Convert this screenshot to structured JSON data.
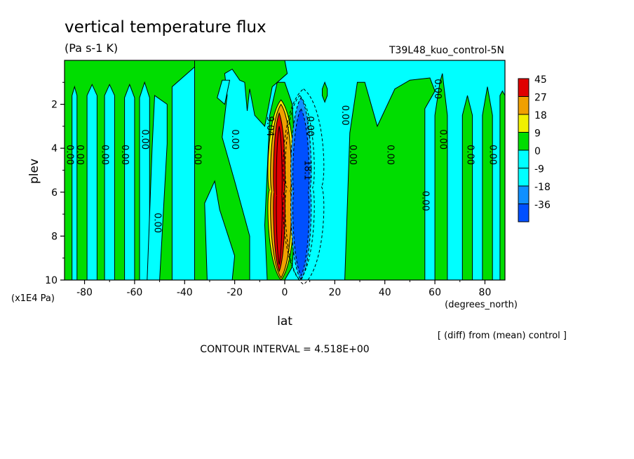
{
  "chart_data": {
    "type": "heatmap",
    "title": "vertical temperature flux",
    "subtitle": "(Pa s-1 K)",
    "run_label": "T39L48_kuo_control-5N",
    "xlabel": "lat",
    "x_units": "(degrees_north)",
    "ylabel": "plev",
    "y_units": "(x1E4 Pa)",
    "xlim": [
      -88,
      88
    ],
    "ylim": [
      0,
      10
    ],
    "y_axis_inverted": true,
    "x_ticks": [
      -80,
      -60,
      -40,
      -20,
      0,
      20,
      40,
      60,
      80
    ],
    "y_ticks": [
      2,
      4,
      6,
      8,
      10
    ],
    "footnote": "[ (diff) from (mean) control ]",
    "contour_interval_label": "CONTOUR INTERVAL = 4.518E+00",
    "colorbar": {
      "levels": [
        "45",
        "27",
        "18",
        "9",
        "0",
        "-9",
        "-18",
        "-36"
      ],
      "colors": [
        "#e00000",
        "#f0a000",
        "#f0f000",
        "#00dd00",
        "#00ffff",
        "#00ffff",
        "#1090ff",
        "#0050ff"
      ]
    },
    "palette": {
      "cyan": "#00ffff",
      "green": "#00dd00",
      "orange": "#f0a000",
      "yellow": "#f0f000",
      "red": "#e00000",
      "blue": "#1090ff",
      "deepblue": "#0050ff"
    },
    "contour_labels": [
      {
        "text": "0.00",
        "lat": -86,
        "plev": 4.3
      },
      {
        "text": "0.00",
        "lat": -82,
        "plev": 4.3
      },
      {
        "text": "0.00",
        "lat": -72,
        "plev": 4.3
      },
      {
        "text": "0.00",
        "lat": -64,
        "plev": 4.3
      },
      {
        "text": "0.00",
        "lat": -56,
        "plev": 3.6
      },
      {
        "text": "0.00",
        "lat": -51,
        "plev": 7.4
      },
      {
        "text": "0.00",
        "lat": -35,
        "plev": 4.3
      },
      {
        "text": "0.00",
        "lat": -20,
        "plev": 3.6
      },
      {
        "text": "9.04",
        "lat": -6,
        "plev": 3.0
      },
      {
        "text": "0.00",
        "lat": 10,
        "plev": 3.0
      },
      {
        "text": "18.1",
        "lat": 9,
        "plev": 5.0
      },
      {
        "text": "0.00",
        "lat": 24,
        "plev": 2.5
      },
      {
        "text": "0.00",
        "lat": 27,
        "plev": 4.3
      },
      {
        "text": "0.00",
        "lat": 42,
        "plev": 4.3
      },
      {
        "text": "0.00",
        "lat": 56,
        "plev": 6.4
      },
      {
        "text": "0.00",
        "lat": 61,
        "plev": 1.3
      },
      {
        "text": "0.00",
        "lat": 63,
        "plev": 3.6
      },
      {
        "text": "0.00",
        "lat": 74,
        "plev": 4.3
      },
      {
        "text": "0.00",
        "lat": 83,
        "plev": 4.3
      }
    ]
  }
}
